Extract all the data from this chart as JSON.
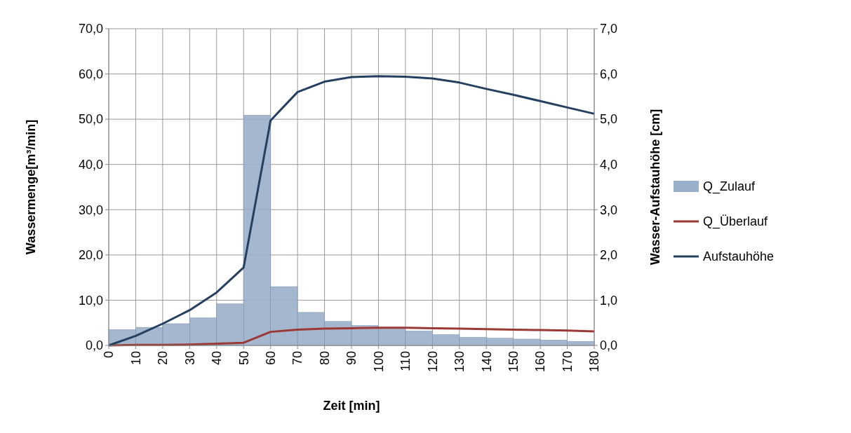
{
  "chart_data": {
    "type": "line",
    "xlabel": "Zeit [min]",
    "ylabel": "Wassermenge[m³/min]",
    "y2label": "Wasser-Aufstauhöhe [cm]",
    "x": [
      0,
      10,
      20,
      30,
      40,
      50,
      60,
      70,
      80,
      90,
      100,
      110,
      120,
      130,
      140,
      150,
      160,
      170,
      180
    ],
    "xlim": [
      0,
      180
    ],
    "xticks": [
      0,
      10,
      20,
      30,
      40,
      50,
      60,
      70,
      80,
      90,
      100,
      110,
      120,
      130,
      140,
      150,
      160,
      170,
      180
    ],
    "ylim": [
      0,
      70
    ],
    "yticks": [
      {
        "value": 0,
        "label": "0,0"
      },
      {
        "value": 10,
        "label": "10,0"
      },
      {
        "value": 20,
        "label": "20,0"
      },
      {
        "value": 30,
        "label": "30,0"
      },
      {
        "value": 40,
        "label": "40,0"
      },
      {
        "value": 50,
        "label": "50,0"
      },
      {
        "value": 60,
        "label": "60,0"
      },
      {
        "value": 70,
        "label": "70,0"
      }
    ],
    "y2lim": [
      0,
      7
    ],
    "y2ticks": [
      {
        "value": 0,
        "label": "0,0"
      },
      {
        "value": 1,
        "label": "1,0"
      },
      {
        "value": 2,
        "label": "2,0"
      },
      {
        "value": 3,
        "label": "3,0"
      },
      {
        "value": 4,
        "label": "4,0"
      },
      {
        "value": 5,
        "label": "5,0"
      },
      {
        "value": 6,
        "label": "6,0"
      },
      {
        "value": 7,
        "label": "7,0"
      }
    ],
    "grid": true,
    "legend": "right",
    "marker": "none",
    "line_style": "solid",
    "series": [
      {
        "name": "Q_Zulauf",
        "type": "histogram",
        "color": "#9aafc9",
        "bins": [
          0,
          10,
          20,
          30,
          40,
          50,
          60,
          70,
          80,
          90,
          100,
          110,
          120,
          130,
          140,
          150,
          160,
          170,
          180
        ],
        "values": [
          3.5,
          4.0,
          4.8,
          6.1,
          9.2,
          50.9,
          13.0,
          7.3,
          5.3,
          4.4,
          3.8,
          3.2,
          2.4,
          1.8,
          1.6,
          1.4,
          1.2,
          0.9
        ]
      },
      {
        "name": "Q_Überlauf",
        "color": "#9b3a35",
        "values": [
          0,
          0.1,
          0.1,
          0.2,
          0.4,
          0.6,
          3.0,
          3.5,
          3.7,
          3.8,
          3.9,
          3.9,
          3.8,
          3.7,
          3.6,
          3.5,
          3.4,
          3.3,
          3.1
        ]
      },
      {
        "name": "Aufstauhöhe",
        "axis": "y2",
        "color": "#243f60",
        "values": [
          0,
          0.21,
          0.48,
          0.78,
          1.17,
          1.72,
          4.97,
          5.6,
          5.83,
          5.93,
          5.95,
          5.94,
          5.9,
          5.81,
          5.67,
          5.54,
          5.4,
          5.26,
          5.12
        ]
      }
    ]
  }
}
